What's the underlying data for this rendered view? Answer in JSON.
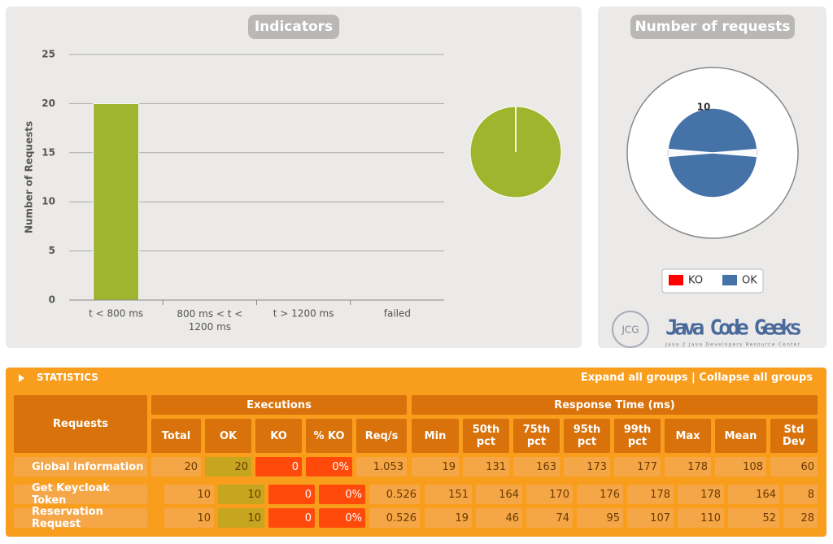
{
  "chart_data": [
    {
      "type": "bar",
      "title": "Indicators",
      "y_label": "Number of Requests",
      "categories": [
        "t < 800 ms",
        "800 ms < t < 1200 ms",
        "t > 1200 ms",
        "failed"
      ],
      "values": [
        20,
        0,
        0,
        0
      ],
      "color": "#a0b52e",
      "ylim": [
        0,
        25
      ],
      "yticks": [
        0,
        5,
        10,
        15,
        20,
        25
      ],
      "grid": true
    },
    {
      "type": "polar",
      "title": "Number of requests",
      "series": [
        {
          "name": "KO",
          "color": "#ff0000",
          "values": [
            0,
            0
          ]
        },
        {
          "name": "OK",
          "color": "#4572a7",
          "values": [
            10,
            10
          ]
        }
      ]
    }
  ],
  "logo": {
    "badge": "JCG",
    "name": "Java Code Geeks",
    "tagline": "Java 2 Java Developers Resource Center"
  },
  "statistics": {
    "title": "STATISTICS",
    "expand": "Expand all groups",
    "separator": "|",
    "collapse": "Collapse all groups",
    "requests_header": "Requests",
    "groups": [
      "Executions",
      "Response Time (ms)"
    ],
    "columns": [
      "Total",
      "OK",
      "KO",
      "% KO",
      "Req/s",
      "Min",
      "50th pct",
      "75th pct",
      "95th pct",
      "99th pct",
      "Max",
      "Mean",
      "Std Dev"
    ],
    "rows": [
      {
        "name": "Global Information",
        "cells": [
          20,
          20,
          0,
          "0%",
          1.053,
          19,
          131,
          163,
          173,
          177,
          178,
          108,
          60
        ]
      },
      {
        "name": "Get Keycloak Token",
        "cells": [
          10,
          10,
          0,
          "0%",
          0.526,
          151,
          164,
          170,
          176,
          178,
          178,
          164,
          8
        ]
      },
      {
        "name": "Reservation Request",
        "cells": [
          10,
          10,
          0,
          "0%",
          0.526,
          19,
          46,
          74,
          95,
          107,
          110,
          52,
          28
        ]
      }
    ]
  }
}
